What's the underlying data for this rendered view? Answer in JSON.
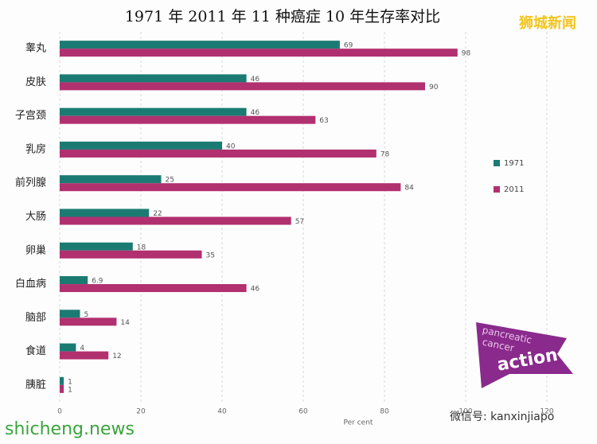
{
  "chart_data": {
    "type": "bar",
    "orientation": "horizontal",
    "title": "1971 年 2011 年  11 种癌症 10 年生存率对比",
    "categories": [
      "睾丸",
      "皮肤",
      "子宫颈",
      "乳房",
      "前列腺",
      "大肠",
      "卵巢",
      "白血病",
      "脑部",
      "食道",
      "胰脏"
    ],
    "series": [
      {
        "name": "1971",
        "color": "#1b7b73",
        "values": [
          69,
          46,
          46,
          40,
          25,
          22,
          18,
          6.9,
          5,
          4,
          1
        ]
      },
      {
        "name": "2011",
        "color": "#b1306f",
        "values": [
          98,
          90,
          63,
          78,
          84,
          57,
          35,
          46,
          14,
          12,
          1
        ]
      }
    ],
    "xlim": [
      0,
      120
    ],
    "xticks": [
      0,
      20,
      40,
      60,
      80,
      100,
      120
    ],
    "xlabel": "Per cent",
    "grid": true,
    "legend": "right"
  },
  "overlays": {
    "watermark": "狮城新闻",
    "site": "shicheng.news",
    "wechat": "微信号: kanxinjiapo",
    "logo": [
      "pancreatic",
      "cancer",
      "action"
    ]
  }
}
